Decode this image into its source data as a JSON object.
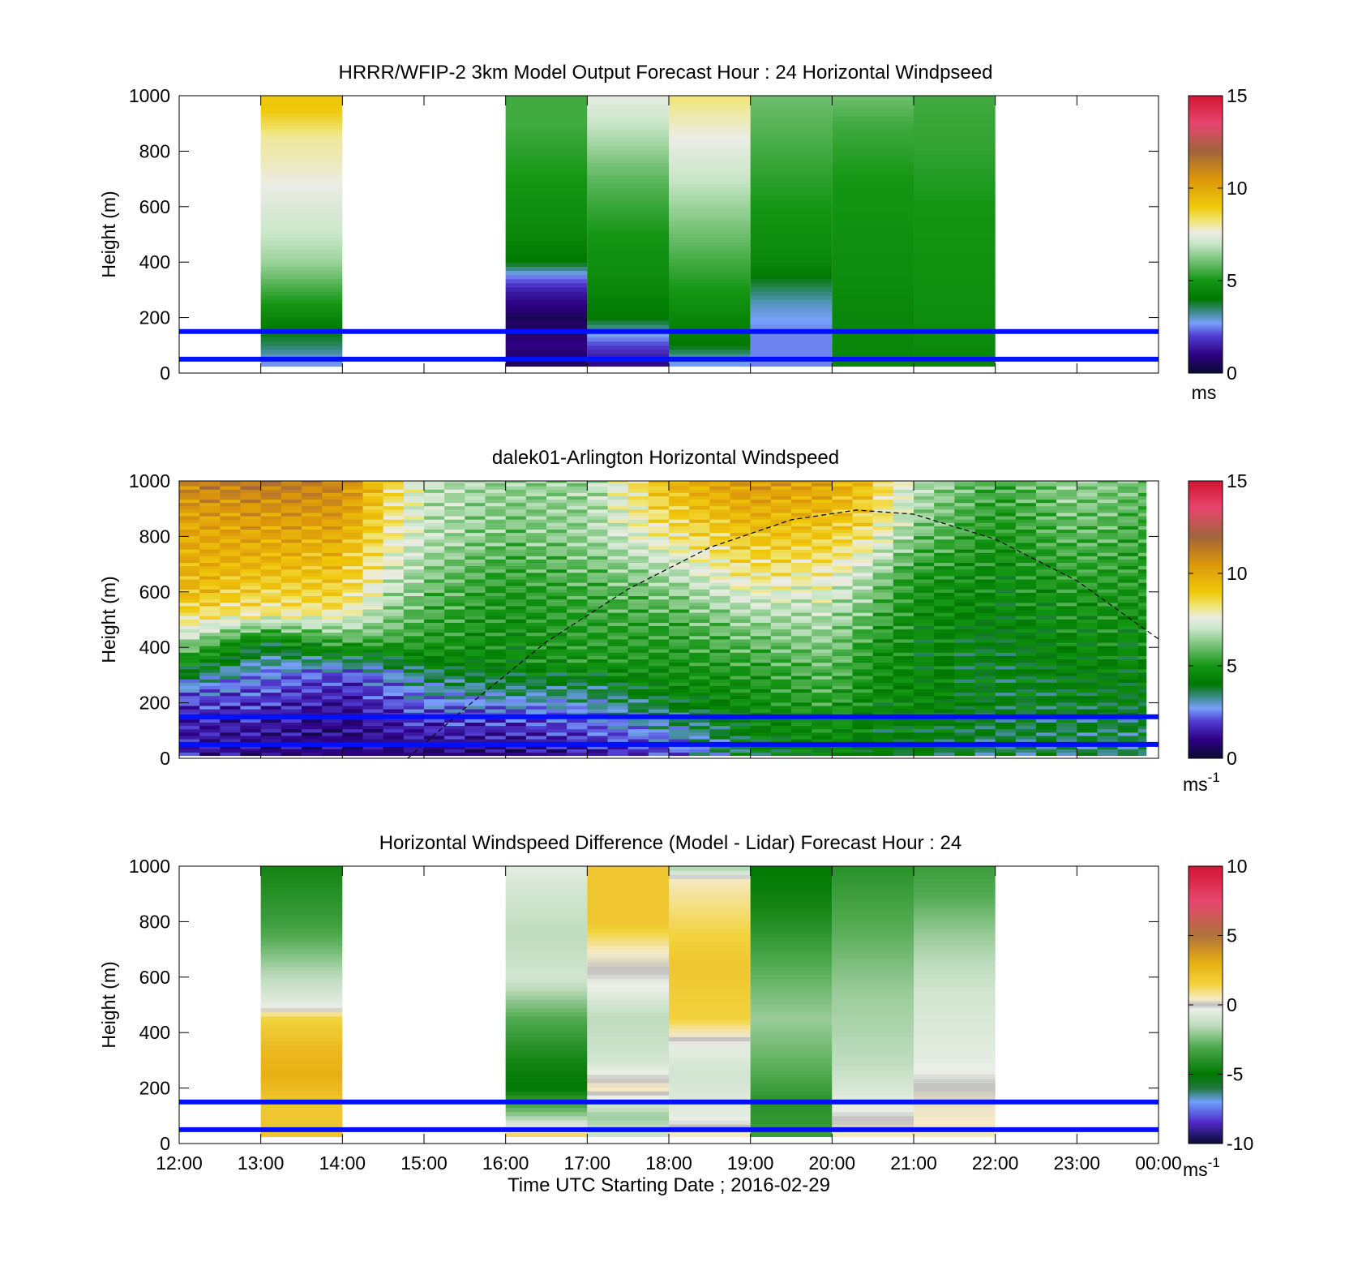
{
  "figure": {
    "xlabel": "Time UTC  Starting Date ; 2016-02-29",
    "x_ticks": [
      "12:00",
      "13:00",
      "14:00",
      "15:00",
      "16:00",
      "17:00",
      "18:00",
      "19:00",
      "20:00",
      "21:00",
      "22:00",
      "23:00",
      "00:00"
    ],
    "ylabel": "Height (m)",
    "y_ticks": [
      "0",
      "200",
      "400",
      "600",
      "800",
      "1000"
    ],
    "reference_lines_m": [
      50,
      150
    ],
    "reference_line_color": "#0010ff"
  },
  "chart_data": [
    {
      "type": "heatmap",
      "title": "HRRR/WFIP-2 3km Model Output   Forecast Hour : 24 Horizontal Windpseed",
      "xlabel": "",
      "ylabel": "Height (m)",
      "x_range_hours": [
        12,
        24
      ],
      "ylim": [
        0,
        1000
      ],
      "colorbar": {
        "range": [
          0,
          15
        ],
        "ticks": [
          "0",
          "5",
          "10",
          "15"
        ],
        "unit": "ms"
      },
      "columns": [
        {
          "t_start": 13,
          "t_end": 14,
          "speed_ms_by_height": [
            [
              25,
              2.5
            ],
            [
              60,
              3
            ],
            [
              100,
              3.5
            ],
            [
              150,
              4
            ],
            [
              200,
              4.5
            ],
            [
              300,
              5.5
            ],
            [
              400,
              6.5
            ],
            [
              500,
              7
            ],
            [
              650,
              7.5
            ],
            [
              750,
              7.8
            ],
            [
              850,
              8
            ],
            [
              950,
              9
            ]
          ]
        },
        {
          "t_start": 16,
          "t_end": 17,
          "speed_ms_by_height": [
            [
              25,
              0.5
            ],
            [
              100,
              1
            ],
            [
              200,
              0.5
            ],
            [
              300,
              1.5
            ],
            [
              350,
              2.5
            ],
            [
              400,
              4
            ],
            [
              500,
              4.5
            ],
            [
              700,
              5
            ],
            [
              900,
              5.5
            ],
            [
              1000,
              5.5
            ]
          ]
        },
        {
          "t_start": 17,
          "t_end": 18,
          "speed_ms_by_height": [
            [
              25,
              1
            ],
            [
              100,
              2
            ],
            [
              200,
              4
            ],
            [
              300,
              4.5
            ],
            [
              500,
              5
            ],
            [
              700,
              5.8
            ],
            [
              900,
              7
            ],
            [
              1000,
              7.5
            ]
          ]
        },
        {
          "t_start": 18,
          "t_end": 19,
          "speed_ms_by_height": [
            [
              25,
              2.5
            ],
            [
              100,
              4
            ],
            [
              200,
              4.5
            ],
            [
              300,
              5
            ],
            [
              500,
              6
            ],
            [
              700,
              7
            ],
            [
              900,
              7.8
            ],
            [
              1000,
              8.2
            ]
          ]
        },
        {
          "t_start": 19,
          "t_end": 20,
          "speed_ms_by_height": [
            [
              25,
              2.5
            ],
            [
              150,
              2.5
            ],
            [
              250,
              3
            ],
            [
              350,
              4
            ],
            [
              400,
              4.5
            ],
            [
              600,
              5
            ],
            [
              800,
              5.5
            ],
            [
              1000,
              6
            ]
          ]
        },
        {
          "t_start": 20,
          "t_end": 21,
          "speed_ms_by_height": [
            [
              25,
              4.5
            ],
            [
              200,
              4.5
            ],
            [
              500,
              4.8
            ],
            [
              700,
              5
            ],
            [
              900,
              5.5
            ],
            [
              1000,
              6
            ]
          ]
        },
        {
          "t_start": 21,
          "t_end": 22,
          "speed_ms_by_height": [
            [
              25,
              4.5
            ],
            [
              300,
              4.8
            ],
            [
              600,
              5
            ],
            [
              800,
              5.3
            ],
            [
              1000,
              5.5
            ]
          ]
        }
      ]
    },
    {
      "type": "heatmap",
      "title": "dalek01-Arlington  Horizontal Windspeed",
      "xlabel": "",
      "ylabel": "Height (m)",
      "x_range_hours": [
        12,
        23.85
      ],
      "ylim": [
        0,
        1000
      ],
      "colorbar": {
        "range": [
          0,
          15
        ],
        "ticks": [
          "0",
          "5",
          "10",
          "15"
        ],
        "unit": "ms-1"
      },
      "sample_step_hours": 0.25,
      "speed_ms_by_time": [
        [
          12.0,
          [
            [
              30,
              1.5
            ],
            [
              150,
              1.5
            ],
            [
              250,
              2.5
            ],
            [
              350,
              5
            ],
            [
              450,
              7.5
            ],
            [
              600,
              9.5
            ],
            [
              850,
              10
            ],
            [
              1000,
              11
            ]
          ]
        ],
        [
          13.0,
          [
            [
              30,
              1
            ],
            [
              150,
              1.5
            ],
            [
              300,
              2.5
            ],
            [
              420,
              4
            ],
            [
              520,
              8
            ],
            [
              700,
              9.5
            ],
            [
              900,
              10.5
            ],
            [
              1000,
              11.5
            ]
          ]
        ],
        [
          14.0,
          [
            [
              30,
              1
            ],
            [
              150,
              1
            ],
            [
              300,
              2
            ],
            [
              400,
              5
            ],
            [
              550,
              8.5
            ],
            [
              750,
              9.5
            ],
            [
              900,
              10.5
            ],
            [
              1000,
              11
            ]
          ]
        ],
        [
          14.5,
          [
            [
              30,
              1
            ],
            [
              150,
              1.5
            ],
            [
              300,
              2.5
            ],
            [
              450,
              6
            ],
            [
              650,
              7.5
            ],
            [
              850,
              8.5
            ],
            [
              1000,
              9
            ]
          ]
        ],
        [
          15.0,
          [
            [
              30,
              1
            ],
            [
              150,
              2
            ],
            [
              300,
              3.5
            ],
            [
              400,
              5
            ],
            [
              600,
              6
            ],
            [
              800,
              7
            ],
            [
              1000,
              7
            ]
          ]
        ],
        [
          16.0,
          [
            [
              30,
              1
            ],
            [
              150,
              2
            ],
            [
              250,
              3.5
            ],
            [
              350,
              4.5
            ],
            [
              600,
              5
            ],
            [
              800,
              6
            ],
            [
              1000,
              6.5
            ]
          ]
        ],
        [
          17.0,
          [
            [
              30,
              1.5
            ],
            [
              150,
              2.5
            ],
            [
              250,
              3.5
            ],
            [
              350,
              5
            ],
            [
              600,
              5.5
            ],
            [
              800,
              6.5
            ],
            [
              1000,
              6.5
            ]
          ]
        ],
        [
          18.0,
          [
            [
              30,
              2
            ],
            [
              150,
              3.5
            ],
            [
              250,
              4.5
            ],
            [
              500,
              5.5
            ],
            [
              700,
              7
            ],
            [
              850,
              8.5
            ],
            [
              1000,
              9.5
            ]
          ]
        ],
        [
          19.0,
          [
            [
              30,
              4
            ],
            [
              150,
              4.5
            ],
            [
              300,
              5
            ],
            [
              500,
              6.5
            ],
            [
              700,
              8.5
            ],
            [
              850,
              9.5
            ],
            [
              1000,
              10.5
            ]
          ]
        ],
        [
          20.0,
          [
            [
              30,
              4.5
            ],
            [
              150,
              5
            ],
            [
              350,
              6
            ],
            [
              550,
              7
            ],
            [
              750,
              8.5
            ],
            [
              900,
              9.5
            ],
            [
              1000,
              10
            ]
          ]
        ],
        [
          20.5,
          [
            [
              30,
              4
            ],
            [
              200,
              4.5
            ],
            [
              400,
              5
            ],
            [
              650,
              6.5
            ],
            [
              850,
              8.5
            ],
            [
              1000,
              9
            ]
          ]
        ],
        [
          21.0,
          [
            [
              30,
              4
            ],
            [
              200,
              4.5
            ],
            [
              400,
              4.5
            ],
            [
              650,
              5
            ],
            [
              850,
              6.5
            ],
            [
              1000,
              7
            ]
          ]
        ],
        [
          22.0,
          [
            [
              30,
              3.5
            ],
            [
              200,
              4
            ],
            [
              400,
              4
            ],
            [
              600,
              4.5
            ],
            [
              850,
              5
            ],
            [
              1000,
              5.5
            ]
          ]
        ],
        [
          23.0,
          [
            [
              30,
              3.5
            ],
            [
              200,
              4
            ],
            [
              400,
              4.5
            ],
            [
              600,
              5
            ],
            [
              850,
              6
            ],
            [
              1000,
              6.5
            ]
          ]
        ],
        [
          23.85,
          [
            [
              30,
              3.5
            ],
            [
              200,
              4
            ],
            [
              400,
              4.5
            ],
            [
              600,
              5
            ],
            [
              850,
              5.5
            ],
            [
              1000,
              6
            ]
          ]
        ]
      ],
      "overlay_curve": {
        "style": "dashed",
        "points_time_height": [
          [
            14.8,
            0
          ],
          [
            15.5,
            180
          ],
          [
            16.5,
            420
          ],
          [
            17.5,
            610
          ],
          [
            18.5,
            760
          ],
          [
            19.5,
            860
          ],
          [
            20.3,
            895
          ],
          [
            21.0,
            880
          ],
          [
            22.0,
            790
          ],
          [
            23.0,
            640
          ],
          [
            24.0,
            430
          ]
        ]
      }
    },
    {
      "type": "heatmap",
      "title": "Horizontal Windspeed Difference (Model - Lidar) Forecast Hour : 24",
      "xlabel": "Time UTC  Starting Date ; 2016-02-29",
      "ylabel": "Height (m)",
      "x_range_hours": [
        12,
        24
      ],
      "ylim": [
        0,
        1000
      ],
      "colorbar": {
        "range": [
          -10,
          10
        ],
        "ticks": [
          "-10",
          "-5",
          "0",
          "5",
          "10"
        ],
        "unit": "ms-1"
      },
      "columns": [
        {
          "t_start": 13,
          "t_end": 14,
          "diff_ms_by_height": [
            [
              25,
              2
            ],
            [
              150,
              2
            ],
            [
              250,
              3
            ],
            [
              350,
              2.5
            ],
            [
              450,
              1.5
            ],
            [
              500,
              -0.5
            ],
            [
              650,
              -2
            ],
            [
              800,
              -3.5
            ],
            [
              1000,
              -4.5
            ]
          ]
        },
        {
          "t_start": 16,
          "t_end": 17,
          "diff_ms_by_height": [
            [
              25,
              1.5
            ],
            [
              100,
              -2
            ],
            [
              200,
              -5
            ],
            [
              300,
              -4.5
            ],
            [
              450,
              -3
            ],
            [
              600,
              -1
            ],
            [
              750,
              -1.5
            ],
            [
              900,
              -1
            ],
            [
              1000,
              -0.5
            ]
          ]
        },
        {
          "t_start": 17,
          "t_end": 18,
          "diff_ms_by_height": [
            [
              25,
              -1
            ],
            [
              100,
              -2
            ],
            [
              200,
              0.5
            ],
            [
              300,
              -1
            ],
            [
              450,
              -1.5
            ],
            [
              550,
              -0.5
            ],
            [
              700,
              0.5
            ],
            [
              800,
              2
            ],
            [
              1000,
              2
            ]
          ]
        },
        {
          "t_start": 18,
          "t_end": 19,
          "diff_ms_by_height": [
            [
              25,
              0.5
            ],
            [
              100,
              -0.5
            ],
            [
              250,
              -1
            ],
            [
              350,
              -0.5
            ],
            [
              450,
              1.5
            ],
            [
              650,
              2
            ],
            [
              850,
              1
            ],
            [
              950,
              0.5
            ],
            [
              1000,
              -2
            ]
          ]
        },
        {
          "t_start": 19,
          "t_end": 20,
          "diff_ms_by_height": [
            [
              25,
              -3.5
            ],
            [
              150,
              -4
            ],
            [
              250,
              -3
            ],
            [
              450,
              -2
            ],
            [
              650,
              -3
            ],
            [
              850,
              -4.5
            ],
            [
              1000,
              -5
            ]
          ]
        },
        {
          "t_start": 20,
          "t_end": 21,
          "diff_ms_by_height": [
            [
              25,
              0.5
            ],
            [
              150,
              -0.5
            ],
            [
              300,
              -1.5
            ],
            [
              550,
              -2
            ],
            [
              800,
              -3
            ],
            [
              1000,
              -4
            ]
          ]
        },
        {
          "t_start": 21,
          "t_end": 22,
          "diff_ms_by_height": [
            [
              25,
              0.5
            ],
            [
              150,
              0.3
            ],
            [
              300,
              -0.5
            ],
            [
              550,
              -1
            ],
            [
              750,
              -2
            ],
            [
              900,
              -3
            ],
            [
              1000,
              -3.5
            ]
          ]
        }
      ]
    }
  ]
}
